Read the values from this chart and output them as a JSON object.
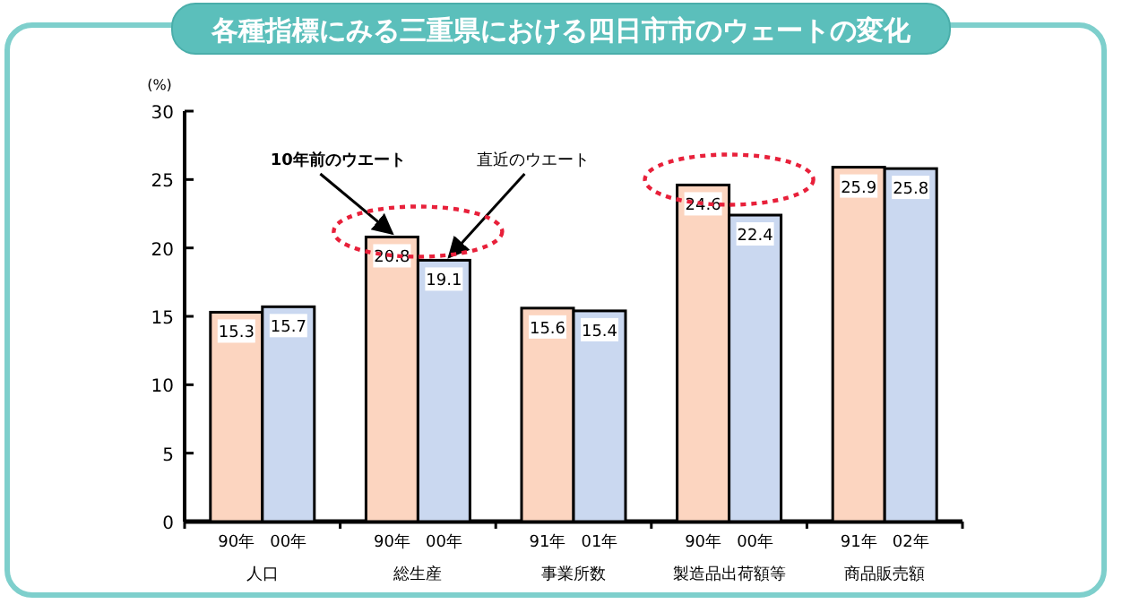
{
  "chart_data": {
    "type": "bar",
    "title": "各種指標にみる三重県における四日市市のウェートの変化",
    "ylabel": "(%)",
    "categories": [
      "人口",
      "総生産",
      "事業所数",
      "製造品出荷額等",
      "商品販売額"
    ],
    "series": [
      {
        "name": "10年前のウエート",
        "color": "#fcd5c0",
        "values": [
          15.3,
          20.8,
          15.6,
          24.6,
          25.9
        ]
      },
      {
        "name": "直近のウエート",
        "color": "#cad8f0",
        "values": [
          15.7,
          19.1,
          15.4,
          22.4,
          25.8
        ]
      }
    ],
    "ylim": [
      0,
      30
    ],
    "yticks": [
      0,
      5,
      10,
      15,
      20,
      25,
      30
    ],
    "data_labels": true,
    "grid": false,
    "annotations": [
      "90年",
      "00年",
      "90年",
      "00年",
      "91年",
      "01年",
      "90年",
      "00年",
      "91年",
      "02年"
    ]
  }
}
